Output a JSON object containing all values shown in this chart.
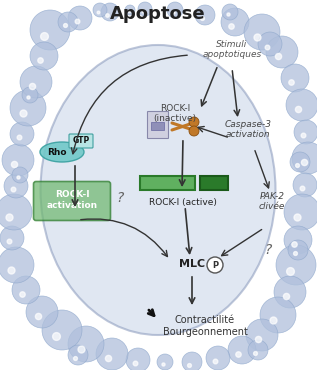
{
  "title": "Apoptose",
  "bg_color": "#ffffff",
  "cell_color": "#c8d4e8",
  "bubble_color": "#b0c0dc",
  "stimuli_text": "Stimuli\napoptotiques",
  "rho_text": "Rho",
  "gtp_text": "GTP",
  "rock_inactive_text": "ROCK-I\n(inactive)",
  "caspase_text": "Caspase-3\nactivation",
  "rock_activation_text": "ROCK-I\nactivation",
  "rock_active_text": "ROCK-I (active)",
  "pak2_text": "PAK-2\nclivée",
  "mlc_text": "MLC",
  "p_text": "P",
  "contractilite_text": "Contractilité\nBourgeonnement",
  "arrow_color": "#333333",
  "green_dark": "#2a7a2a",
  "green_light": "#60b060",
  "rho_fill": "#70c8c8",
  "gtp_fill": "#b8e4e4",
  "rock_act_fill": "#70b870",
  "scissors_color": "#c07828"
}
